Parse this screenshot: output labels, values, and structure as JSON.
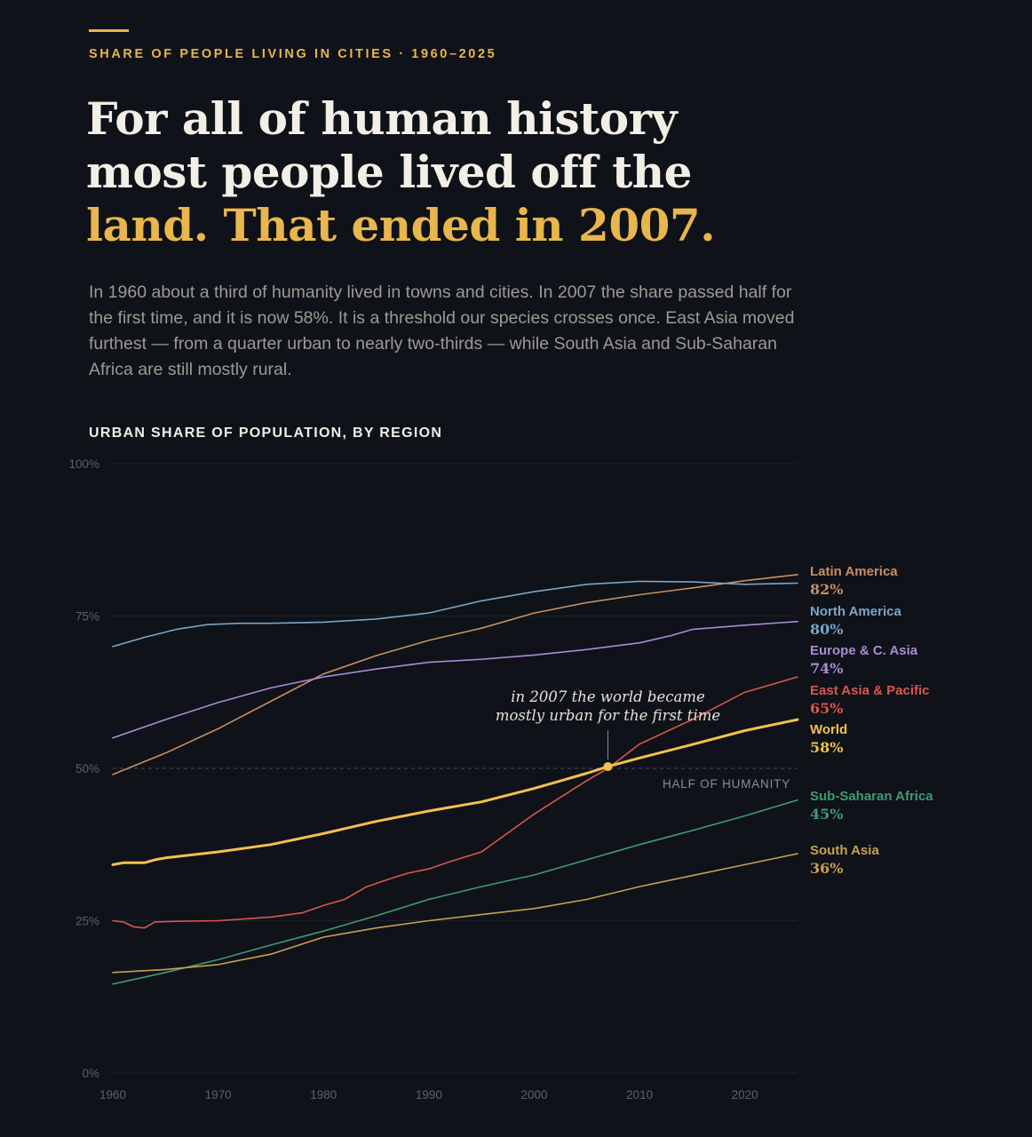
{
  "header": {
    "kicker": "SHARE OF PEOPLE LIVING IN CITIES · 1960–2025",
    "headline_line1": "For all of human history",
    "headline_line2": "most people lived off the",
    "headline_highlight": "land. That ended in 2007.",
    "deck": "In 1960 about a third of humanity lived in towns and cities. In 2007 the share passed half for the first time, and it is now 58%. It is a threshold our species crosses once. East Asia moved furthest — from a quarter urban to nearly two-thirds — while South Asia and Sub-Saharan Africa are still mostly rural."
  },
  "chart_data": {
    "type": "line",
    "title": "URBAN SHARE OF POPULATION, BY REGION",
    "xlim": [
      1960,
      2025
    ],
    "ylim": [
      0,
      100
    ],
    "x_ticks": [
      1960,
      1970,
      1980,
      1990,
      2000,
      2010,
      2020
    ],
    "y_ticks": [
      {
        "value": 0,
        "label": "0%"
      },
      {
        "value": 25,
        "label": "25%"
      },
      {
        "value": 50,
        "label": "50%"
      },
      {
        "value": 75,
        "label": "75%"
      },
      {
        "value": 100,
        "label": "100%"
      }
    ],
    "reference_line": {
      "value": 50,
      "label": "HALF OF HUMANITY"
    },
    "annotation": {
      "x": 2007,
      "y": 50.3,
      "text_line1": "in 2007 the world became",
      "text_line2": "mostly urban for the first time"
    },
    "series": [
      {
        "name": "Latin America",
        "end_label": "82%",
        "color": "#c98f62",
        "width": 1.6,
        "points": [
          [
            1960,
            49
          ],
          [
            1965,
            52.5
          ],
          [
            1970,
            56.5
          ],
          [
            1975,
            61
          ],
          [
            1980,
            65.5
          ],
          [
            1985,
            68.5
          ],
          [
            1990,
            71
          ],
          [
            1995,
            73
          ],
          [
            2000,
            75.5
          ],
          [
            2005,
            77.2
          ],
          [
            2010,
            78.5
          ],
          [
            2015,
            79.6
          ],
          [
            2020,
            80.8
          ],
          [
            2025,
            81.8
          ]
        ]
      },
      {
        "name": "North America",
        "end_label": "80%",
        "color": "#7ba4c9",
        "width": 1.6,
        "points": [
          [
            1960,
            70
          ],
          [
            1963,
            71.5
          ],
          [
            1966,
            72.8
          ],
          [
            1969,
            73.6
          ],
          [
            1972,
            73.8
          ],
          [
            1975,
            73.8
          ],
          [
            1980,
            74
          ],
          [
            1985,
            74.5
          ],
          [
            1990,
            75.5
          ],
          [
            1995,
            77.5
          ],
          [
            2000,
            79
          ],
          [
            2005,
            80.2
          ],
          [
            2010,
            80.7
          ],
          [
            2015,
            80.6
          ],
          [
            2020,
            80.2
          ],
          [
            2025,
            80.4
          ]
        ]
      },
      {
        "name": "Europe & C. Asia",
        "end_label": "74%",
        "color": "#a98bd6",
        "width": 1.6,
        "points": [
          [
            1960,
            55
          ],
          [
            1965,
            58
          ],
          [
            1970,
            60.8
          ],
          [
            1975,
            63.2
          ],
          [
            1980,
            65
          ],
          [
            1985,
            66.3
          ],
          [
            1990,
            67.4
          ],
          [
            1995,
            67.9
          ],
          [
            2000,
            68.6
          ],
          [
            2005,
            69.5
          ],
          [
            2010,
            70.6
          ],
          [
            2013,
            71.8
          ],
          [
            2015,
            72.8
          ],
          [
            2020,
            73.5
          ],
          [
            2025,
            74.1
          ]
        ]
      },
      {
        "name": "East Asia & Pacific",
        "end_label": "65%",
        "color": "#d8574e",
        "width": 1.6,
        "points": [
          [
            1960,
            25
          ],
          [
            1961,
            24.8
          ],
          [
            1962,
            24
          ],
          [
            1963,
            23.8
          ],
          [
            1964,
            24.8
          ],
          [
            1966,
            24.9
          ],
          [
            1970,
            25
          ],
          [
            1975,
            25.6
          ],
          [
            1978,
            26.3
          ],
          [
            1980,
            27.5
          ],
          [
            1982,
            28.5
          ],
          [
            1984,
            30.5
          ],
          [
            1986,
            31.7
          ],
          [
            1988,
            32.8
          ],
          [
            1990,
            33.5
          ],
          [
            1992,
            34.7
          ],
          [
            1995,
            36.3
          ],
          [
            2000,
            42.5
          ],
          [
            2005,
            48
          ],
          [
            2007,
            50
          ],
          [
            2010,
            54
          ],
          [
            2015,
            58
          ],
          [
            2020,
            62.5
          ],
          [
            2025,
            65
          ]
        ]
      },
      {
        "name": "World",
        "end_label": "58%",
        "color": "#f2c14e",
        "width": 3,
        "points": [
          [
            1960,
            34.2
          ],
          [
            1961,
            34.5
          ],
          [
            1963,
            34.5
          ],
          [
            1964,
            35
          ],
          [
            1965,
            35.3
          ],
          [
            1970,
            36.3
          ],
          [
            1975,
            37.5
          ],
          [
            1980,
            39.3
          ],
          [
            1985,
            41.3
          ],
          [
            1990,
            43
          ],
          [
            1995,
            44.5
          ],
          [
            2000,
            46.7
          ],
          [
            2005,
            49.2
          ],
          [
            2007,
            50.3
          ],
          [
            2010,
            51.7
          ],
          [
            2015,
            53.9
          ],
          [
            2020,
            56.2
          ],
          [
            2025,
            58
          ]
        ]
      },
      {
        "name": "Sub-Saharan Africa",
        "end_label": "45%",
        "color": "#3f9a77",
        "width": 1.6,
        "points": [
          [
            1960,
            14.6
          ],
          [
            1965,
            16.5
          ],
          [
            1970,
            18.6
          ],
          [
            1975,
            21
          ],
          [
            1980,
            23.3
          ],
          [
            1985,
            25.8
          ],
          [
            1990,
            28.5
          ],
          [
            1995,
            30.6
          ],
          [
            2000,
            32.5
          ],
          [
            2005,
            35
          ],
          [
            2010,
            37.5
          ],
          [
            2015,
            39.8
          ],
          [
            2020,
            42.2
          ],
          [
            2025,
            44.8
          ]
        ]
      },
      {
        "name": "South Asia",
        "end_label": "36%",
        "color": "#c7a04f",
        "width": 1.6,
        "points": [
          [
            1960,
            16.5
          ],
          [
            1965,
            17
          ],
          [
            1970,
            17.8
          ],
          [
            1975,
            19.5
          ],
          [
            1980,
            22.3
          ],
          [
            1985,
            23.8
          ],
          [
            1990,
            25
          ],
          [
            1995,
            26
          ],
          [
            2000,
            27
          ],
          [
            2005,
            28.5
          ],
          [
            2010,
            30.6
          ],
          [
            2015,
            32.4
          ],
          [
            2020,
            34.2
          ],
          [
            2025,
            36
          ]
        ]
      }
    ]
  }
}
